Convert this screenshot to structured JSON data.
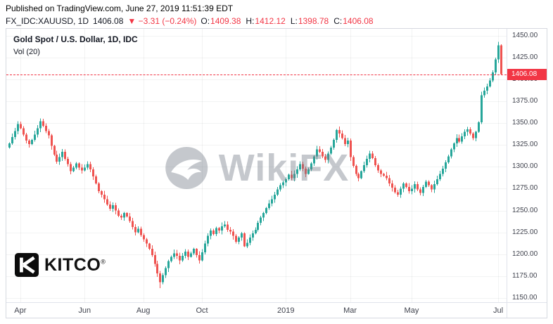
{
  "header": {
    "published_line": "Published on TradingView.com, June 27, 2019 11:51:39 EDT",
    "symbol": "FX_IDC:XAUUSD, 1D",
    "last": "1406.08",
    "change": "▼ −3.31 (−0.24%)",
    "ohlc": [
      {
        "label": "O:",
        "value": "1409.38"
      },
      {
        "label": "H:",
        "value": "1412.12"
      },
      {
        "label": "L:",
        "value": "1398.78"
      },
      {
        "label": "C:",
        "value": "1406.08"
      }
    ]
  },
  "legend": {
    "title": "Gold Spot / U.S. Dollar, 1D, IDC",
    "vol": "Vol (20)"
  },
  "watermark": "WikiFX",
  "kitco": {
    "text": "KITCO",
    "reg": "®"
  },
  "colors": {
    "up": "#26a69a",
    "down": "#ef5350",
    "accent_red": "#f23645",
    "text": "#131722",
    "axis_text": "#40434e",
    "border": "#d6d9e0",
    "grid": "rgba(42,46,57,0.06)",
    "tag_text": "#ffffff",
    "watermark_gray": "#767e8a"
  },
  "chart_data": {
    "type": "candlestick",
    "title": "Gold Spot / U.S. Dollar, 1D, IDC",
    "symbol": "XAUUSD",
    "timeframe": "1D",
    "ylim": [
      1145,
      1458
    ],
    "grid": "faint",
    "y_ticks": [
      "1450.00",
      "1425.00",
      "1400.00",
      "1375.00",
      "1350.00",
      "1325.00",
      "1300.00",
      "1275.00",
      "1250.00",
      "1225.00",
      "1200.00",
      "1175.00",
      "1150.00"
    ],
    "x_ticks": [
      {
        "label": "Apr",
        "i": 4
      },
      {
        "label": "Jun",
        "i": 27
      },
      {
        "label": "Aug",
        "i": 48
      },
      {
        "label": "Oct",
        "i": 69
      },
      {
        "label": "2019",
        "i": 99
      },
      {
        "label": "Mar",
        "i": 122
      },
      {
        "label": "May",
        "i": 144
      },
      {
        "label": "Jul",
        "i": 175
      }
    ],
    "first_open": 1322,
    "closes": [
      1327,
      1334,
      1341,
      1349,
      1344,
      1337,
      1330,
      1326,
      1331,
      1337,
      1344,
      1352,
      1347,
      1341,
      1336,
      1324,
      1314,
      1306,
      1311,
      1317,
      1309,
      1303,
      1295,
      1299,
      1304,
      1299,
      1296,
      1299,
      1303,
      1297,
      1289,
      1281,
      1272,
      1268,
      1263,
      1257,
      1252,
      1256,
      1250,
      1244,
      1242,
      1247,
      1243,
      1238,
      1231,
      1225,
      1229,
      1222,
      1217,
      1212,
      1206,
      1199,
      1189,
      1178,
      1168,
      1176,
      1184,
      1192,
      1197,
      1201,
      1198,
      1193,
      1198,
      1203,
      1197,
      1201,
      1206,
      1199,
      1193,
      1202,
      1212,
      1221,
      1227,
      1223,
      1230,
      1227,
      1232,
      1234,
      1228,
      1226,
      1221,
      1214,
      1219,
      1224,
      1209,
      1213,
      1219,
      1224,
      1228,
      1236,
      1242,
      1247,
      1253,
      1258,
      1263,
      1268,
      1274,
      1279,
      1282,
      1286,
      1291,
      1287,
      1292,
      1297,
      1303,
      1298,
      1292,
      1297,
      1304,
      1312,
      1320,
      1317,
      1312,
      1308,
      1315,
      1322,
      1331,
      1342,
      1338,
      1333,
      1326,
      1330,
      1311,
      1301,
      1292,
      1287,
      1295,
      1302,
      1309,
      1315,
      1310,
      1302,
      1296,
      1292,
      1290,
      1287,
      1281,
      1276,
      1271,
      1268,
      1275,
      1281,
      1277,
      1272,
      1275,
      1280,
      1274,
      1270,
      1277,
      1283,
      1279,
      1274,
      1280,
      1286,
      1292,
      1298,
      1305,
      1312,
      1320,
      1327,
      1333,
      1329,
      1335,
      1340,
      1343,
      1338,
      1333,
      1340,
      1351,
      1382,
      1387,
      1392,
      1399,
      1408,
      1423,
      1439,
      1406.08
    ],
    "wick_overrides": [
      {
        "i": 54,
        "low": 1161
      },
      {
        "i": 175,
        "high": 1443
      }
    ],
    "last_price": 1406.08,
    "last_price_label": "1406.08"
  }
}
